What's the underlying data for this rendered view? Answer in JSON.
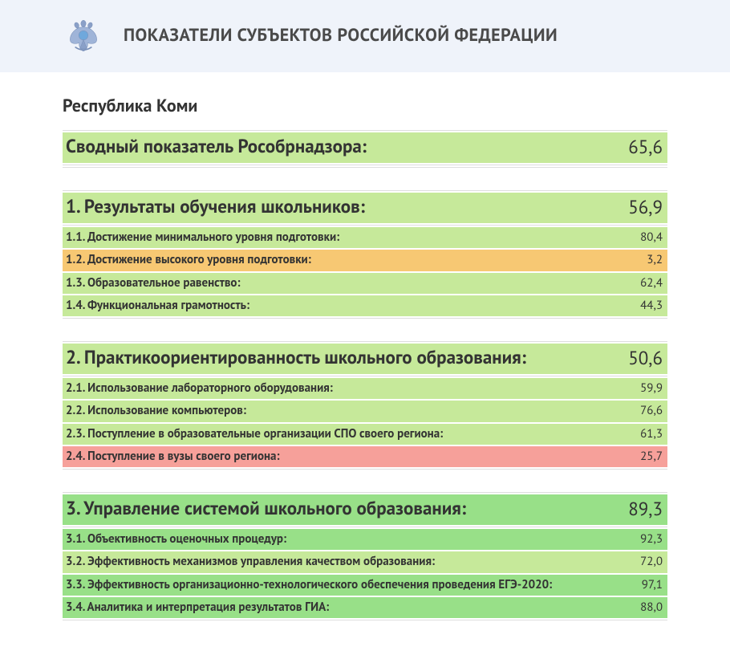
{
  "colors": {
    "header_band": "#eff3fa",
    "text": "#333333",
    "hr": "#dddddd",
    "green": "#c6e99a",
    "darkgreen": "#98e088",
    "orange": "#f7c873",
    "red": "#f6a09a"
  },
  "header": {
    "title": "ПОКАЗАТЕЛИ СУБЪЕКТОВ РОССИЙСКОЙ ФЕДЕРАЦИИ"
  },
  "region": "Республика Коми",
  "sections": [
    {
      "head": {
        "label": "Сводный показатель Рособрнадзора:",
        "value": "65,6",
        "bg": "#c6e99a"
      },
      "rows": []
    },
    {
      "head": {
        "label": "1. Результаты обучения школьников:",
        "value": "56,9",
        "bg": "#c6e99a"
      },
      "rows": [
        {
          "label": "1.1. Достижение минимального уровня подготовки:",
          "value": "80,4",
          "bg": "#c6e99a"
        },
        {
          "label": "1.2. Достижение высокого уровня подготовки:",
          "value": "3,2",
          "bg": "#f7c873"
        },
        {
          "label": "1.3. Образовательное равенство:",
          "value": "62,4",
          "bg": "#c6e99a"
        },
        {
          "label": "1.4. Функциональная грамотность:",
          "value": "44,3",
          "bg": "#c6e99a"
        }
      ]
    },
    {
      "head": {
        "label": "2. Практикоориентированность школьного образования:",
        "value": "50,6",
        "bg": "#c6e99a"
      },
      "rows": [
        {
          "label": "2.1. Использование лабораторного оборудования:",
          "value": "59,9",
          "bg": "#c6e99a"
        },
        {
          "label": "2.2. Использование компьютеров:",
          "value": "76,6",
          "bg": "#c6e99a"
        },
        {
          "label": "2.3. Поступление в образовательные организации СПО своего региона:",
          "value": "61,3",
          "bg": "#c6e99a"
        },
        {
          "label": "2.4. Поступление в вузы своего региона:",
          "value": "25,7",
          "bg": "#f6a09a"
        }
      ]
    },
    {
      "head": {
        "label": "3. Управление системой школьного образования:",
        "value": "89,3",
        "bg": "#98e088"
      },
      "rows": [
        {
          "label": "3.1. Объективность оценочных процедур:",
          "value": "92,3",
          "bg": "#98e088"
        },
        {
          "label": "3.2. Эффективность механизмов управления качеством образования:",
          "value": "72,0",
          "bg": "#c6e99a"
        },
        {
          "label": "3.3. Эффективность организационно-технологического обеспечения проведения ЕГЭ-2020:",
          "value": "97,1",
          "bg": "#98e088"
        },
        {
          "label": "3.4. Аналитика и интерпретация результатов ГИА:",
          "value": "88,0",
          "bg": "#98e088"
        }
      ]
    }
  ]
}
